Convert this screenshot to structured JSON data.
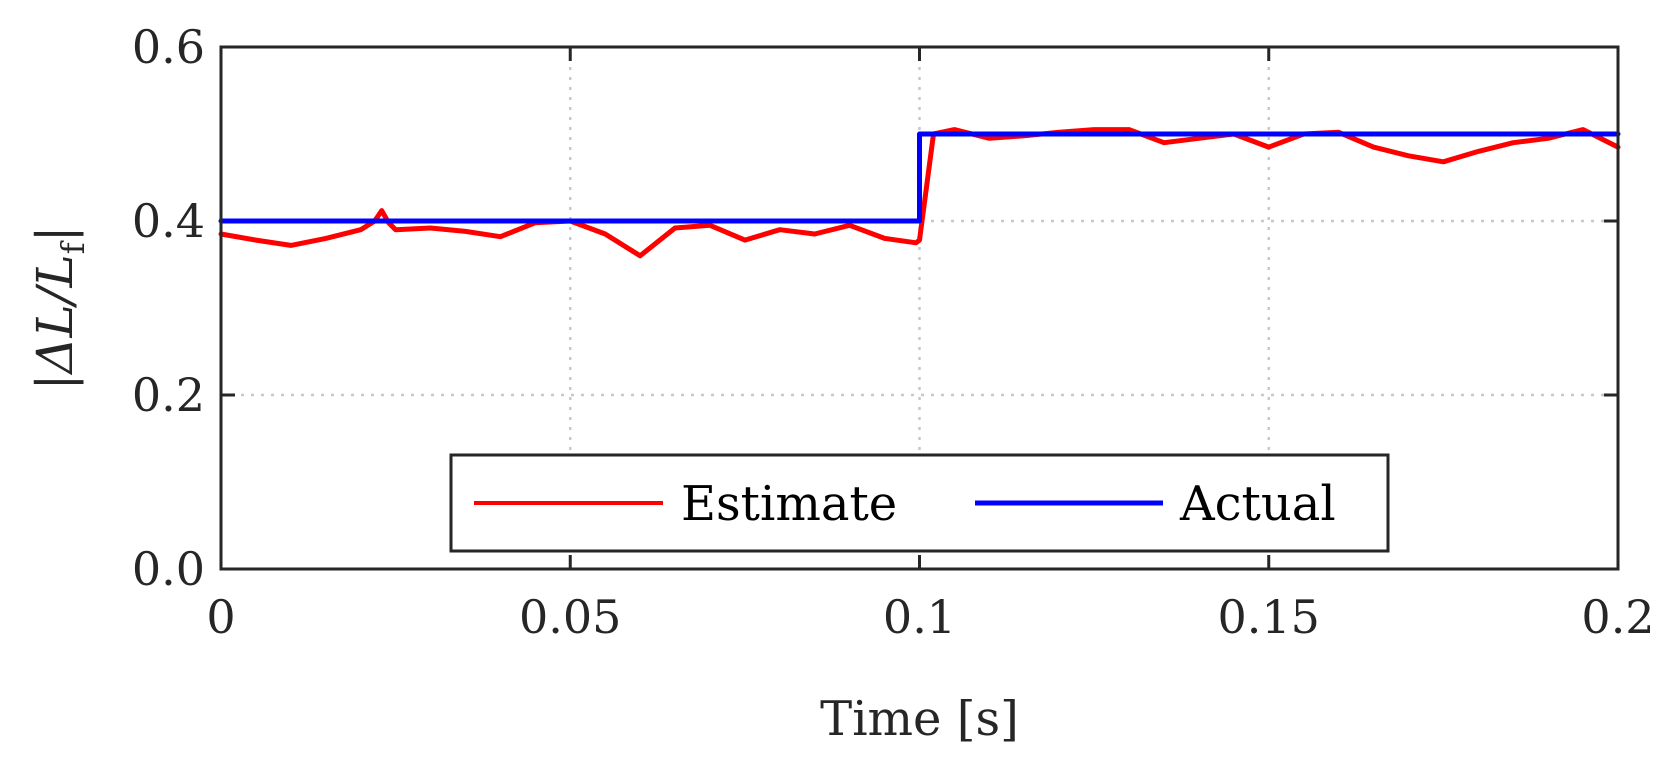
{
  "chart_data": {
    "type": "line",
    "xlabel": "Time [s]",
    "ylabel": "|ΔL/L",
    "ylabel_subscript": "f",
    "ylabel_close": "|",
    "xlim": [
      0,
      0.2
    ],
    "ylim": [
      0,
      0.6
    ],
    "grid": true,
    "legend_position": "bottom-center",
    "x_ticks": [
      0,
      0.05,
      0.1,
      0.15,
      0.2
    ],
    "x_tick_labels": [
      "0",
      "0.05",
      "0.1",
      "0.15",
      "0.2"
    ],
    "y_ticks": [
      0,
      0.2,
      0.4,
      0.6
    ],
    "y_tick_labels": [
      "0.0",
      "0.2",
      "0.4",
      "0.6"
    ],
    "series": [
      {
        "name": "Estimate",
        "color": "#ff0000",
        "x": [
          0,
          0.005,
          0.01,
          0.015,
          0.02,
          0.022,
          0.023,
          0.024,
          0.025,
          0.03,
          0.035,
          0.04,
          0.045,
          0.05,
          0.055,
          0.06,
          0.065,
          0.07,
          0.075,
          0.08,
          0.085,
          0.09,
          0.095,
          0.0995,
          0.1,
          0.102,
          0.105,
          0.11,
          0.115,
          0.12,
          0.125,
          0.13,
          0.135,
          0.14,
          0.145,
          0.15,
          0.155,
          0.16,
          0.165,
          0.17,
          0.175,
          0.18,
          0.185,
          0.19,
          0.195,
          0.2
        ],
        "values": [
          0.385,
          0.378,
          0.372,
          0.38,
          0.39,
          0.4,
          0.412,
          0.398,
          0.39,
          0.392,
          0.388,
          0.382,
          0.398,
          0.4,
          0.385,
          0.36,
          0.392,
          0.395,
          0.378,
          0.39,
          0.385,
          0.395,
          0.38,
          0.375,
          0.378,
          0.5,
          0.505,
          0.495,
          0.498,
          0.502,
          0.505,
          0.505,
          0.49,
          0.495,
          0.5,
          0.485,
          0.5,
          0.502,
          0.485,
          0.475,
          0.468,
          0.48,
          0.49,
          0.495,
          0.505,
          0.485
        ]
      },
      {
        "name": "Actual",
        "color": "#0000ff",
        "x": [
          0,
          0.1,
          0.1,
          0.2
        ],
        "values": [
          0.4,
          0.4,
          0.5,
          0.5
        ]
      }
    ]
  }
}
